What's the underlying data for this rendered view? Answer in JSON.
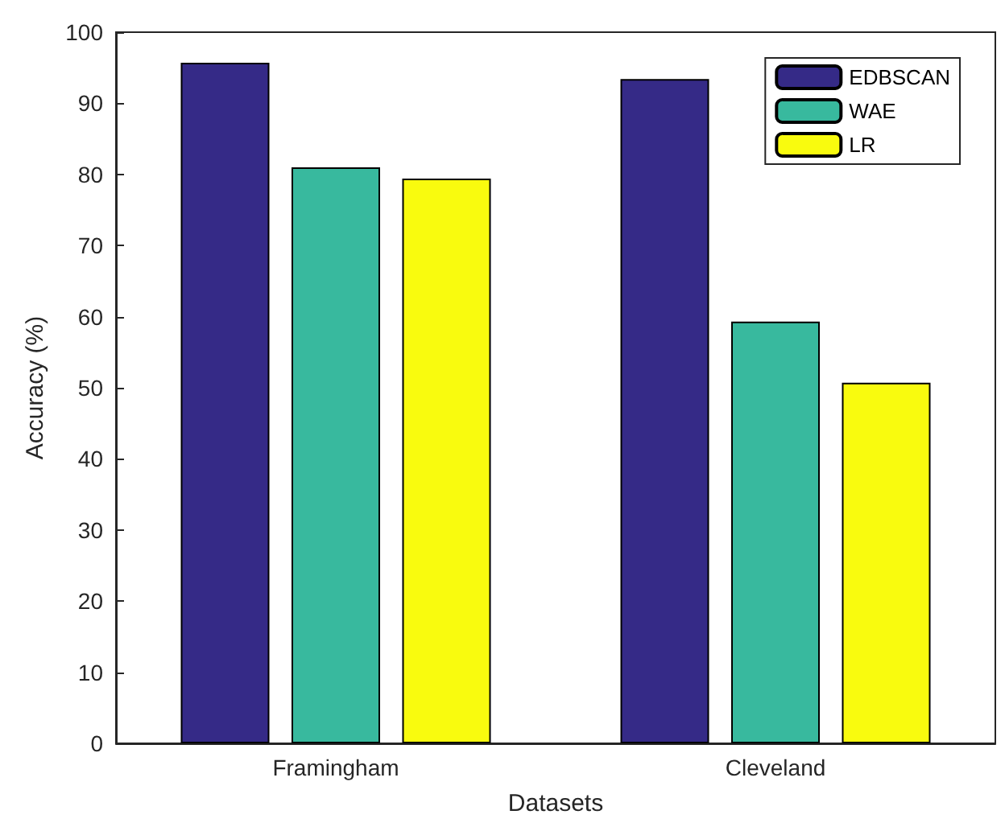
{
  "chart_data": {
    "type": "bar",
    "xlabel": "Datasets",
    "ylabel": "Accuracy (%)",
    "categories": [
      "Framingham",
      "Cleveland"
    ],
    "series": [
      {
        "name": "EDBSCAN",
        "color": "#352a87",
        "values": [
          95.7,
          93.4
        ]
      },
      {
        "name": "WAE",
        "color": "#38b99e",
        "values": [
          81.0,
          59.3
        ]
      },
      {
        "name": "LR",
        "color": "#f9fb0e",
        "values": [
          79.4,
          50.7
        ]
      }
    ],
    "ylim": [
      0,
      100
    ],
    "yticks": [
      0,
      10,
      20,
      30,
      40,
      50,
      60,
      70,
      80,
      90,
      100
    ],
    "grid": false,
    "legend": "top right"
  }
}
